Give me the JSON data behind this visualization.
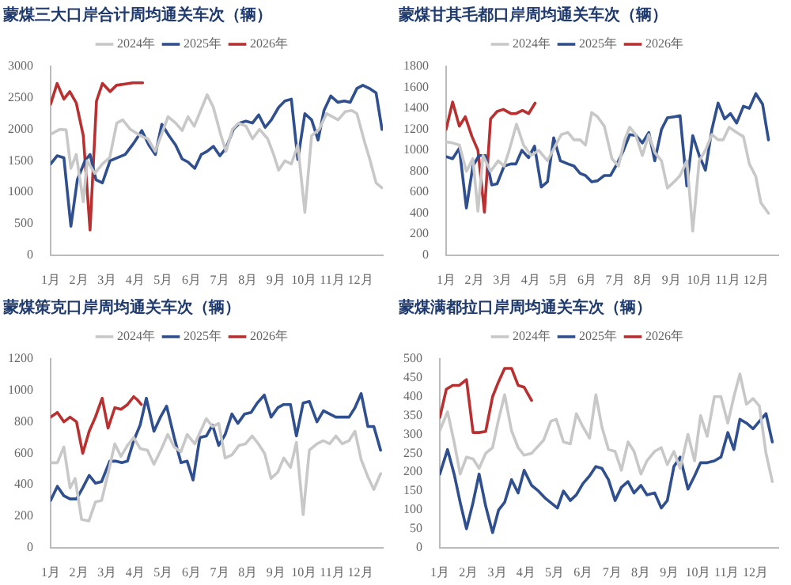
{
  "chart_data": [
    {
      "type": "line",
      "title": "蒙煤三大口岸合计周均通关车次（辆）",
      "xlim": [
        1,
        12.8
      ],
      "xticks": [
        {
          "value": 1,
          "label": "1月"
        },
        {
          "value": 2,
          "label": "2月"
        },
        {
          "value": 3,
          "label": "3月"
        },
        {
          "value": 4,
          "label": "4月"
        },
        {
          "value": 5,
          "label": "5月"
        },
        {
          "value": 6,
          "label": "6月"
        },
        {
          "value": 7,
          "label": "7月"
        },
        {
          "value": 8,
          "label": "8月"
        },
        {
          "value": 9,
          "label": "9月"
        },
        {
          "value": 10,
          "label": "10月"
        },
        {
          "value": 11,
          "label": "11月"
        },
        {
          "value": 12,
          "label": "12月"
        }
      ],
      "ylim": [
        0,
        3000
      ],
      "yticks": [
        0,
        500,
        1000,
        1500,
        2000,
        2500,
        3000
      ],
      "legend": "top",
      "grid": false,
      "marker": "none",
      "line_style": "solid",
      "series": [
        {
          "name": "2024年",
          "color": "#c8c8c8",
          "x": [
            1,
            1.32,
            1.55,
            1.72,
            1.91,
            2.16,
            2.3,
            2.57,
            2.84,
            3.1,
            3.35,
            3.56,
            3.83,
            4.18,
            4.45,
            4.72,
            5.17,
            5.44,
            5.67,
            5.88,
            6.1,
            6.33,
            6.56,
            6.78,
            7.05,
            7.23,
            7.46,
            7.67,
            7.94,
            8.17,
            8.42,
            8.71,
            8.92,
            9.1,
            9.32,
            9.55,
            9.78,
            10.03,
            10.27,
            10.54,
            10.8,
            11.01,
            11.21,
            11.46,
            11.7,
            11.88,
            12.15,
            12.32,
            12.56,
            12.77
          ],
          "values": [
            1920,
            2000,
            1990,
            1380,
            1600,
            850,
            1500,
            1300,
            1450,
            1550,
            2100,
            2150,
            2000,
            1900,
            1850,
            1650,
            2200,
            2100,
            1980,
            2200,
            2050,
            2300,
            2550,
            2350,
            1900,
            1650,
            2000,
            2100,
            2050,
            1850,
            2000,
            1850,
            1600,
            1350,
            1500,
            1450,
            1750,
            680,
            1900,
            2000,
            2250,
            2200,
            2150,
            2280,
            2300,
            2250,
            1800,
            1550,
            1150,
            1070
          ]
        },
        {
          "name": "2025年",
          "color": "#2f4f8f",
          "x": [
            1,
            1.23,
            1.47,
            1.72,
            1.95,
            2.22,
            2.4,
            2.61,
            2.84,
            3.11,
            3.38,
            3.65,
            3.95,
            4.24,
            4.49,
            4.72,
            4.95,
            5.2,
            5.44,
            5.67,
            5.88,
            6.12,
            6.35,
            6.56,
            6.78,
            7.01,
            7.23,
            7.49,
            7.71,
            7.94,
            8.17,
            8.39,
            8.62,
            8.84,
            9.1,
            9.32,
            9.55,
            9.78,
            10.03,
            10.27,
            10.5,
            10.71,
            10.95,
            11.2,
            11.43,
            11.64,
            11.88,
            12.09,
            12.32,
            12.56,
            12.77
          ],
          "values": [
            1450,
            1580,
            1550,
            460,
            1200,
            1500,
            1600,
            1200,
            1150,
            1500,
            1550,
            1600,
            1780,
            1980,
            1750,
            1600,
            2080,
            1900,
            1750,
            1530,
            1480,
            1380,
            1600,
            1650,
            1730,
            1580,
            1700,
            2000,
            2100,
            2130,
            2100,
            2230,
            2030,
            2150,
            2350,
            2450,
            2480,
            1520,
            2250,
            2150,
            1830,
            2300,
            2530,
            2430,
            2450,
            2430,
            2650,
            2700,
            2650,
            2580,
            2000
          ]
        },
        {
          "name": "2026年",
          "color": "#b83030",
          "x": [
            1,
            1.23,
            1.47,
            1.68,
            1.91,
            2.16,
            2.4,
            2.63,
            2.84,
            3.11,
            3.34,
            3.65,
            3.92,
            4.27
          ],
          "values": [
            2400,
            2730,
            2480,
            2600,
            2420,
            1900,
            400,
            2450,
            2730,
            2600,
            2700,
            2720,
            2740,
            2740
          ]
        }
      ]
    },
    {
      "type": "line",
      "title": "蒙煤甘其毛都口岸周均通关车次（辆）",
      "xlim": [
        1,
        12.8
      ],
      "xticks": [
        {
          "value": 1,
          "label": "1月"
        },
        {
          "value": 2,
          "label": "2月"
        },
        {
          "value": 3,
          "label": "3月"
        },
        {
          "value": 4,
          "label": "4月"
        },
        {
          "value": 5,
          "label": "5月"
        },
        {
          "value": 6,
          "label": "6月"
        },
        {
          "value": 7,
          "label": "7月"
        },
        {
          "value": 8,
          "label": "8月"
        },
        {
          "value": 9,
          "label": "9月"
        },
        {
          "value": 10,
          "label": "10月"
        },
        {
          "value": 11,
          "label": "11月"
        },
        {
          "value": 12,
          "label": "12月"
        }
      ],
      "ylim": [
        0,
        1800
      ],
      "yticks": [
        0,
        200,
        400,
        600,
        800,
        1000,
        1200,
        1400,
        1600,
        1800
      ],
      "legend": "top",
      "grid": false,
      "marker": "none",
      "line_style": "solid",
      "series": [
        {
          "name": "2024年",
          "color": "#c8c8c8",
          "x": [
            1,
            1.23,
            1.47,
            1.72,
            1.95,
            2.13,
            2.31,
            2.58,
            2.85,
            3.06,
            3.24,
            3.5,
            3.75,
            4.02,
            4.29,
            4.6,
            5.09,
            5.33,
            5.54,
            5.76,
            5.95,
            6.17,
            6.38,
            6.62,
            6.89,
            7.12,
            7.34,
            7.52,
            7.73,
            7.97,
            8.2,
            8.41,
            8.65,
            8.86,
            9.1,
            9.31,
            9.55,
            9.76,
            9.99,
            10.21,
            10.44,
            10.66,
            10.84,
            11.05,
            11.32,
            11.56,
            11.77,
            12,
            12.18,
            12.45
          ],
          "values": [
            1080,
            1070,
            1050,
            800,
            920,
            420,
            950,
            800,
            900,
            850,
            1000,
            1250,
            1050,
            950,
            1000,
            900,
            1150,
            1170,
            1100,
            1100,
            1050,
            1360,
            1320,
            1230,
            920,
            850,
            1100,
            1220,
            1150,
            950,
            1150,
            980,
            900,
            640,
            700,
            760,
            900,
            230,
            900,
            1000,
            1150,
            1100,
            1100,
            1220,
            1170,
            1130,
            870,
            750,
            500,
            400
          ]
        },
        {
          "name": "2025年",
          "color": "#2f4f8f",
          "x": [
            1,
            1.23,
            1.47,
            1.72,
            1.95,
            2.17,
            2.4,
            2.62,
            2.81,
            3.06,
            3.3,
            3.48,
            3.69,
            3.93,
            4.14,
            4.38,
            4.6,
            4.82,
            5.06,
            5.33,
            5.54,
            5.76,
            5.95,
            6.17,
            6.38,
            6.62,
            6.84,
            7.07,
            7.3,
            7.52,
            7.75,
            7.97,
            8.2,
            8.41,
            8.65,
            8.86,
            9.1,
            9.31,
            9.55,
            9.76,
            9.99,
            10.21,
            10.44,
            10.66,
            10.89,
            11.1,
            11.32,
            11.56,
            11.77,
            12,
            12.24,
            12.45
          ],
          "values": [
            940,
            920,
            1020,
            450,
            850,
            950,
            950,
            670,
            680,
            850,
            870,
            870,
            1000,
            930,
            1040,
            650,
            700,
            1120,
            900,
            870,
            850,
            780,
            760,
            700,
            710,
            760,
            760,
            870,
            1000,
            1150,
            1140,
            1070,
            1170,
            900,
            1200,
            1310,
            1320,
            1330,
            660,
            1140,
            950,
            810,
            1200,
            1450,
            1300,
            1350,
            1260,
            1420,
            1400,
            1540,
            1440,
            1100
          ]
        },
        {
          "name": "2026年",
          "color": "#b83030",
          "x": [
            1,
            1.23,
            1.47,
            1.68,
            1.92,
            2.13,
            2.36,
            2.58,
            2.81,
            3.03,
            3.3,
            3.48,
            3.71,
            3.93,
            4.16
          ],
          "values": [
            1200,
            1460,
            1230,
            1320,
            1130,
            1000,
            410,
            1300,
            1370,
            1390,
            1350,
            1350,
            1380,
            1350,
            1450
          ]
        }
      ]
    },
    {
      "type": "line",
      "title": "蒙煤策克口岸周均通关车次（辆）",
      "xlim": [
        1,
        12.8
      ],
      "xticks": [
        {
          "value": 1,
          "label": "1月"
        },
        {
          "value": 2,
          "label": "2月"
        },
        {
          "value": 3,
          "label": "3月"
        },
        {
          "value": 4,
          "label": "4月"
        },
        {
          "value": 5,
          "label": "5月"
        },
        {
          "value": 6,
          "label": "6月"
        },
        {
          "value": 7,
          "label": "7月"
        },
        {
          "value": 8,
          "label": "8月"
        },
        {
          "value": 9,
          "label": "9月"
        },
        {
          "value": 10,
          "label": "10月"
        },
        {
          "value": 11,
          "label": "11月"
        },
        {
          "value": 12,
          "label": "12月"
        }
      ],
      "ylim": [
        0,
        1200
      ],
      "yticks": [
        0,
        200,
        400,
        600,
        800,
        1000,
        1200
      ],
      "legend": "top",
      "grid": false,
      "marker": "none",
      "line_style": "solid",
      "series": [
        {
          "name": "2024年",
          "color": "#c8c8c8",
          "x": [
            1,
            1.24,
            1.47,
            1.69,
            1.87,
            2.1,
            2.36,
            2.59,
            2.81,
            3.04,
            3.28,
            3.5,
            3.73,
            3.95,
            4.18,
            4.44,
            4.67,
            4.94,
            5.16,
            5.39,
            5.63,
            5.85,
            6.12,
            6.53,
            6.75,
            6.97,
            7.2,
            7.44,
            7.69,
            7.92,
            8.16,
            8.38,
            8.6,
            8.83,
            9.07,
            9.28,
            9.52,
            9.73,
            9.97,
            10.19,
            10.46,
            10.69,
            10.91,
            11.13,
            11.36,
            11.6,
            11.81,
            12.03,
            12.27,
            12.48,
            12.72
          ],
          "values": [
            540,
            540,
            640,
            380,
            440,
            180,
            170,
            290,
            300,
            470,
            660,
            580,
            650,
            700,
            630,
            620,
            530,
            630,
            720,
            640,
            610,
            720,
            660,
            820,
            770,
            790,
            570,
            590,
            650,
            660,
            710,
            660,
            600,
            440,
            480,
            570,
            510,
            670,
            210,
            620,
            660,
            680,
            660,
            710,
            660,
            680,
            740,
            560,
            450,
            370,
            470
          ]
        },
        {
          "name": "2025年",
          "color": "#2f4f8f",
          "x": [
            1,
            1.24,
            1.47,
            1.69,
            1.92,
            2.14,
            2.37,
            2.59,
            2.81,
            3.1,
            3.31,
            3.53,
            3.73,
            3.95,
            4.18,
            4.4,
            4.67,
            4.9,
            5.12,
            5.39,
            5.63,
            5.85,
            6.06,
            6.3,
            6.53,
            6.75,
            6.97,
            7.2,
            7.44,
            7.65,
            7.89,
            8.12,
            8.34,
            8.59,
            8.83,
            9.07,
            9.28,
            9.52,
            9.73,
            9.97,
            10.19,
            10.46,
            10.69,
            10.91,
            11.13,
            11.36,
            11.6,
            11.81,
            12.03,
            12.27,
            12.48,
            12.72
          ],
          "values": [
            300,
            390,
            330,
            310,
            310,
            380,
            460,
            410,
            420,
            550,
            550,
            540,
            550,
            680,
            780,
            950,
            740,
            830,
            900,
            700,
            540,
            550,
            430,
            700,
            710,
            780,
            650,
            720,
            850,
            790,
            850,
            860,
            920,
            970,
            830,
            890,
            910,
            910,
            710,
            920,
            930,
            800,
            870,
            850,
            830,
            830,
            830,
            890,
            980,
            770,
            770,
            620
          ]
        },
        {
          "name": "2026年",
          "color": "#b83030",
          "x": [
            1,
            1.24,
            1.47,
            1.69,
            1.92,
            2.14,
            2.37,
            2.59,
            2.83,
            3.04,
            3.28,
            3.5,
            3.73,
            3.95,
            4.08,
            4.22
          ],
          "values": [
            830,
            860,
            800,
            830,
            800,
            600,
            740,
            830,
            950,
            760,
            890,
            880,
            910,
            960,
            940,
            910
          ]
        }
      ]
    },
    {
      "type": "line",
      "title": "蒙煤满都拉口岸周均通关车次（辆）",
      "xlim": [
        1,
        12.8
      ],
      "xticks": [
        {
          "value": 1,
          "label": "1月"
        },
        {
          "value": 2,
          "label": "2月"
        },
        {
          "value": 3,
          "label": "3月"
        },
        {
          "value": 4,
          "label": "4月"
        },
        {
          "value": 5,
          "label": "5月"
        },
        {
          "value": 6,
          "label": "6月"
        },
        {
          "value": 7,
          "label": "7月"
        },
        {
          "value": 8,
          "label": "8月"
        },
        {
          "value": 9,
          "label": "9月"
        },
        {
          "value": 10,
          "label": "10月"
        },
        {
          "value": 11,
          "label": "11月"
        },
        {
          "value": 12,
          "label": "12月"
        }
      ],
      "ylim": [
        0,
        500
      ],
      "yticks": [
        0,
        50,
        100,
        150,
        200,
        250,
        300,
        350,
        400,
        450,
        500
      ],
      "legend": "top",
      "grid": false,
      "marker": "none",
      "line_style": "solid",
      "series": [
        {
          "name": "2024年",
          "color": "#c8c8c8",
          "x": [
            1,
            1.27,
            1.5,
            1.71,
            1.93,
            2.16,
            2.37,
            2.6,
            2.84,
            3.05,
            3.26,
            3.5,
            3.73,
            3.94,
            4.2,
            4.62,
            4.87,
            5.06,
            5.31,
            5.55,
            5.76,
            5.99,
            6.22,
            6.44,
            6.65,
            6.88,
            7.11,
            7.33,
            7.56,
            7.77,
            8.01,
            8.22,
            8.49,
            8.72,
            8.93,
            9.16,
            9.38,
            9.65,
            9.88,
            10.09,
            10.32,
            10.57,
            10.8,
            11.04,
            11.25,
            11.46,
            11.69,
            11.92,
            12.14,
            12.37,
            12.59
          ],
          "values": [
            310,
            360,
            280,
            195,
            240,
            235,
            210,
            250,
            265,
            340,
            405,
            310,
            265,
            245,
            250,
            285,
            335,
            340,
            280,
            275,
            355,
            320,
            290,
            405,
            320,
            260,
            255,
            205,
            280,
            255,
            195,
            230,
            255,
            265,
            220,
            255,
            210,
            300,
            230,
            350,
            295,
            400,
            400,
            330,
            400,
            460,
            380,
            395,
            375,
            250,
            175
          ]
        },
        {
          "name": "2025年",
          "color": "#2f4f8f",
          "x": [
            1,
            1.27,
            1.5,
            1.71,
            1.93,
            2.16,
            2.37,
            2.6,
            2.84,
            3.05,
            3.26,
            3.5,
            3.73,
            3.94,
            4.2,
            4.44,
            4.69,
            5.1,
            5.31,
            5.55,
            5.76,
            5.99,
            6.22,
            6.44,
            6.65,
            6.88,
            7.11,
            7.33,
            7.56,
            7.77,
            8.01,
            8.22,
            8.49,
            8.72,
            8.93,
            9.16,
            9.38,
            9.65,
            9.88,
            10.09,
            10.32,
            10.57,
            10.8,
            11.04,
            11.25,
            11.46,
            11.69,
            11.92,
            12.14,
            12.37,
            12.59
          ],
          "values": [
            195,
            260,
            195,
            120,
            50,
            120,
            195,
            110,
            40,
            100,
            120,
            180,
            145,
            205,
            165,
            150,
            130,
            105,
            150,
            125,
            140,
            170,
            190,
            215,
            210,
            180,
            125,
            160,
            175,
            145,
            165,
            140,
            145,
            105,
            125,
            215,
            240,
            155,
            190,
            225,
            225,
            230,
            240,
            305,
            260,
            340,
            330,
            315,
            335,
            355,
            280
          ]
        },
        {
          "name": "2026年",
          "color": "#b83030",
          "x": [
            1,
            1.23,
            1.45,
            1.68,
            1.93,
            2.16,
            2.37,
            2.6,
            2.84,
            3.05,
            3.26,
            3.5,
            3.73,
            3.94,
            4.2
          ],
          "values": [
            345,
            420,
            430,
            430,
            445,
            305,
            305,
            308,
            400,
            440,
            475,
            475,
            430,
            425,
            390
          ]
        }
      ]
    }
  ]
}
